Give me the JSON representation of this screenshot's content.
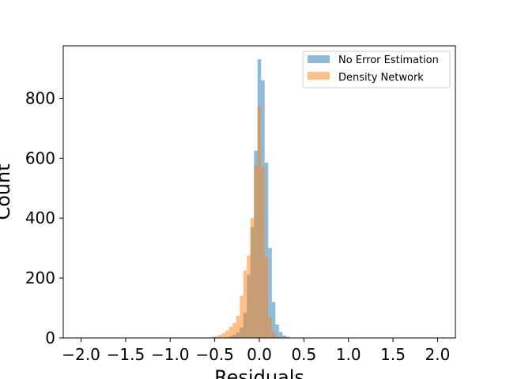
{
  "chart_data": {
    "type": "bar",
    "xlabel": "Residuals",
    "ylabel": "Count",
    "xlim": [
      -2.2,
      2.2
    ],
    "ylim": [
      0,
      975
    ],
    "xticks": [
      -2.0,
      -1.5,
      -1.0,
      -0.5,
      0.0,
      0.5,
      1.0,
      1.5,
      2.0
    ],
    "xtick_labels": [
      "−2.0",
      "−1.5",
      "−1.0",
      "−0.5",
      "0.0",
      "0.5",
      "1.0",
      "1.5",
      "2.0"
    ],
    "yticks": [
      0,
      200,
      400,
      600,
      800
    ],
    "ytick_labels": [
      "0",
      "200",
      "400",
      "600",
      "800"
    ],
    "grid": false,
    "legend_position": "top-right",
    "series": [
      {
        "name": "No Error Estimation",
        "color": "#1f77b4",
        "opacity": 0.5,
        "bin_width": 0.04,
        "bin_starts": [
          -0.38,
          -0.34,
          -0.3,
          -0.26,
          -0.22,
          -0.18,
          -0.14,
          -0.1,
          -0.06,
          -0.02,
          0.02,
          0.06,
          0.1,
          0.14,
          0.18,
          0.22,
          0.26,
          0.3
        ],
        "values": [
          3,
          6,
          10,
          18,
          35,
          85,
          210,
          370,
          625,
          930,
          860,
          585,
          300,
          120,
          45,
          20,
          8,
          4
        ]
      },
      {
        "name": "Density Network",
        "color": "#ff7f0e",
        "opacity": 0.5,
        "bin_width": 0.04,
        "bin_starts": [
          -0.58,
          -0.54,
          -0.5,
          -0.46,
          -0.42,
          -0.38,
          -0.34,
          -0.3,
          -0.26,
          -0.22,
          -0.18,
          -0.14,
          -0.1,
          -0.06,
          -0.02,
          0.02,
          0.06,
          0.1,
          0.14,
          0.18
        ],
        "values": [
          2,
          4,
          6,
          10,
          16,
          25,
          38,
          50,
          75,
          140,
          225,
          275,
          400,
          575,
          775,
          570,
          270,
          70,
          20,
          5
        ]
      }
    ]
  }
}
